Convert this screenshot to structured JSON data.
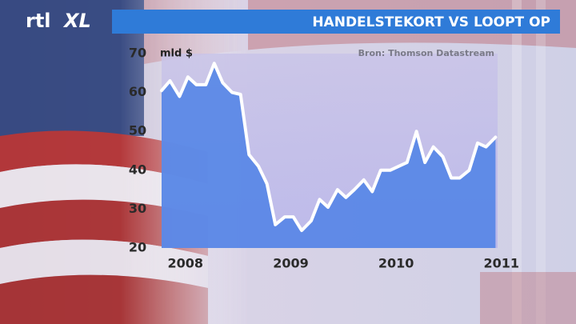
{
  "logo": {
    "rtl": "rtl",
    "xl": "XL"
  },
  "chart_data": {
    "type": "line",
    "title": "HANDELSTEKORT VS LOOPT OP",
    "unit_label": "mld $",
    "source": "Bron: Thomson Datastream",
    "x": [
      2007.88,
      2007.96,
      2008.05,
      2008.13,
      2008.21,
      2008.3,
      2008.38,
      2008.46,
      2008.55,
      2008.63,
      2008.71,
      2008.8,
      2008.88,
      2008.96,
      2009.05,
      2009.13,
      2009.21,
      2009.3,
      2009.38,
      2009.46,
      2009.55,
      2009.63,
      2009.71,
      2009.8,
      2009.88,
      2009.96,
      2010.05,
      2010.13,
      2010.21,
      2010.3,
      2010.38,
      2010.46,
      2010.55,
      2010.63,
      2010.71,
      2010.8,
      2010.88,
      2010.96,
      2011.05
    ],
    "series": [
      {
        "name": "Handelstekort",
        "color": "#ffffff",
        "fill": "#4f82e6",
        "values": [
          60.5,
          63,
          59,
          64,
          62,
          62,
          67.5,
          62.5,
          60,
          59.5,
          44,
          41,
          36.5,
          26,
          28,
          28,
          24.5,
          27,
          32.5,
          30.5,
          35,
          33,
          35,
          37.5,
          34.5,
          40,
          40,
          41,
          42,
          50,
          42,
          46,
          43.5,
          38,
          38,
          40,
          47,
          46,
          48.5
        ]
      }
    ],
    "xlim": [
      2007.88,
      2011.07
    ],
    "xticks": [
      2008,
      2009,
      2010,
      2011
    ],
    "ylim": [
      20,
      70
    ],
    "yticks": [
      20,
      30,
      40,
      50,
      60,
      70
    ]
  }
}
